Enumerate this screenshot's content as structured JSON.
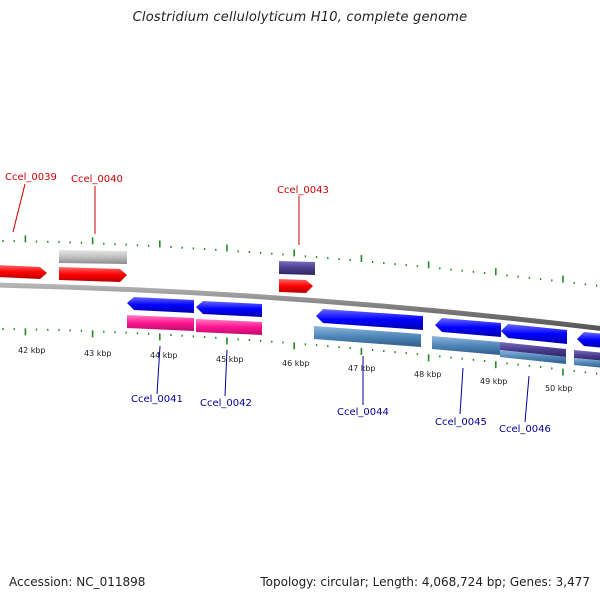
{
  "title": "Clostridium cellulolyticum H10, complete genome",
  "footer": {
    "accession": "Accession: NC_011898",
    "summary": "Topology: circular; Length: 4,068,724 bp; Genes: 3,477"
  },
  "colors": {
    "forward_cds": "#ff0000",
    "reverse_cds": "#0000ff",
    "magenta_feature": "#ff1493",
    "grey_feature": "#c0c0c0",
    "purple_feature": "#4b3d8f",
    "steel_feature": "#4f86b8",
    "backbone": "#7f7f7f",
    "tick": "#228b22",
    "forward_label": "#cc0000",
    "reverse_label": "#000099"
  },
  "scale_labels": [
    "42 kbp",
    "43 kbp",
    "44 kbp",
    "45 kbp",
    "46 kbp",
    "47 kbp",
    "48 kbp",
    "49 kbp",
    "50 kbp"
  ],
  "forward_genes": [
    "Ccel_0039",
    "Ccel_0040",
    "Ccel_0043"
  ],
  "reverse_genes": [
    "Ccel_0041",
    "Ccel_0042",
    "Ccel_0044",
    "Ccel_0045",
    "Ccel_0046"
  ]
}
